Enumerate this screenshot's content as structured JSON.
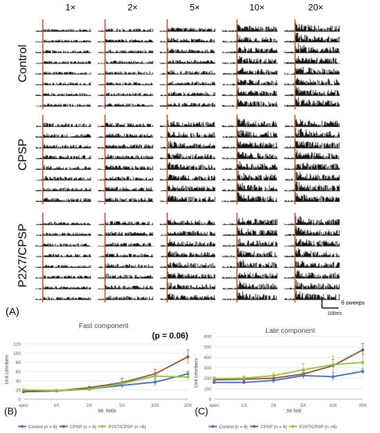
{
  "panel_a": {
    "label": "(A)",
    "fold_headers": [
      "1×",
      "2×",
      "5×",
      "10×",
      "20×"
    ],
    "group_labels": [
      "Control",
      "CPSP",
      "P2X7/CPSP"
    ],
    "scale_bar": {
      "y_label": "6 sweeps",
      "x_label": "100ms"
    },
    "activity_levels": [
      [
        0.25,
        0.3,
        0.45,
        0.8,
        0.95
      ],
      [
        0.45,
        0.5,
        0.75,
        0.95,
        1.0
      ],
      [
        0.3,
        0.45,
        0.7,
        0.9,
        0.9
      ]
    ],
    "trace_color": "#000000",
    "stim_line_color": "#b5543f"
  },
  "chart_data": [
    {
      "type": "line",
      "panel": "(B)",
      "title": "Fast component",
      "annotation": "(p = 0.06)",
      "categories": [
        "spon",
        "1X",
        "2X",
        "5X",
        "10X",
        "20X"
      ],
      "xlabel": "Sti. folds",
      "ylabel": "Unit Umnbers",
      "ylim": [
        0,
        120
      ],
      "yticks": [
        0,
        20,
        40,
        60,
        80,
        100,
        120
      ],
      "grid": true,
      "legend_position": "bottom",
      "series": [
        {
          "name": "Control (n = 6)",
          "color": "#4a6fb5",
          "values": [
            17,
            18,
            22,
            30,
            37,
            55
          ],
          "errors": [
            2,
            2,
            3,
            5,
            8,
            6
          ]
        },
        {
          "name": "CPSP (n = 6)",
          "color": "#8e5540",
          "values": [
            16,
            18,
            25,
            36,
            55,
            92
          ],
          "errors": [
            2,
            2,
            3,
            9,
            10,
            15
          ]
        },
        {
          "name": "P2X7/CPSP (n =6)",
          "color": "#93c048",
          "values": [
            20,
            19,
            21,
            34,
            50,
            48
          ],
          "errors": [
            2,
            2,
            3,
            12,
            6,
            8
          ]
        }
      ]
    },
    {
      "type": "line",
      "panel": "(C)",
      "title": "Late component",
      "categories": [
        "spon",
        "1X",
        "2X",
        "5X",
        "10X",
        "20X"
      ],
      "xlabel": "Sti fold",
      "ylabel": "Unit Umnbers",
      "ylim": [
        0,
        600
      ],
      "yticks": [
        0,
        100,
        200,
        300,
        400,
        500,
        600
      ],
      "grid": true,
      "legend_position": "bottom",
      "series": [
        {
          "name": "Control (n = 6)",
          "color": "#4a6fb5",
          "values": [
            160,
            160,
            178,
            225,
            215,
            265
          ],
          "errors": [
            15,
            15,
            20,
            30,
            40,
            25
          ]
        },
        {
          "name": "CPSP (n = 6)",
          "color": "#8e5540",
          "values": [
            185,
            190,
            200,
            240,
            320,
            470
          ],
          "errors": [
            20,
            20,
            25,
            30,
            60,
            60
          ]
        },
        {
          "name": "P2X7/CPSP (n =6)",
          "color": "#93c048",
          "values": [
            195,
            200,
            225,
            280,
            330,
            350
          ],
          "errors": [
            20,
            20,
            25,
            60,
            80,
            80
          ]
        }
      ]
    }
  ]
}
